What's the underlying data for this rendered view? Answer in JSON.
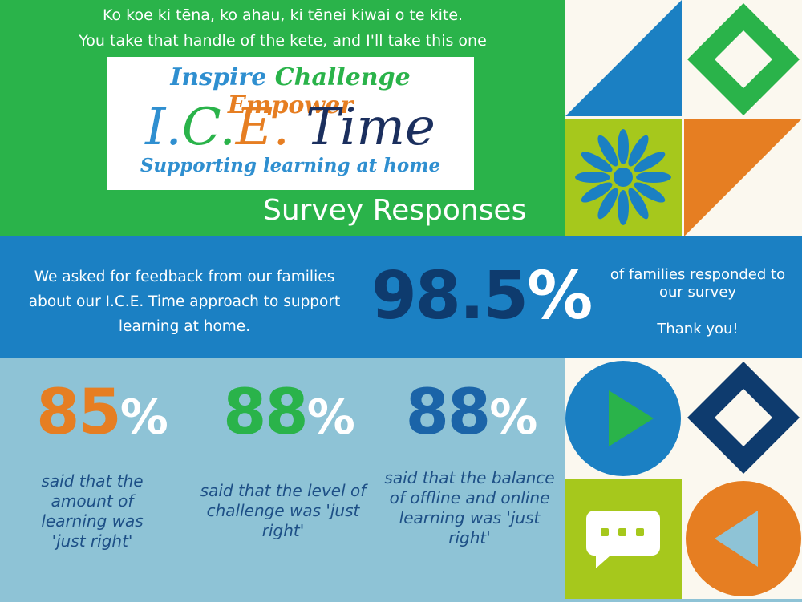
{
  "header": {
    "proverb_line1": "Ko koe ki tēna, ko ahau, ki tēnei kiwai o te kite.",
    "proverb_line2": "You take that handle of the kete, and I'll take this one"
  },
  "logo": {
    "inspire": "Inspire",
    "challenge": "Challenge",
    "empower": "Empower",
    "i": "I.",
    "c": "C.",
    "e": "E.",
    "time": "Time",
    "tagline": "Supporting learning at home"
  },
  "survey_title": "Survey Responses",
  "intro": {
    "text": "We asked for feedback from our families about our I.C.E. Time approach to support learning at home.",
    "percent": "98.5",
    "percent_sign": "%",
    "responded": "of families responded to our survey",
    "thanks": "Thank you!"
  },
  "stats": [
    {
      "value": "85",
      "sign": "%",
      "text": "said that the amount of learning was 'just right'",
      "color": "#e67e22"
    },
    {
      "value": "88",
      "sign": "%",
      "text": "said that the level of challenge was 'just right'",
      "color": "#2ab34a"
    },
    {
      "value": "88",
      "sign": "%",
      "text": "said that the balance of offline and online learning was 'just right'",
      "color": "#1b64a8"
    }
  ],
  "colors": {
    "green": "#2ab34a",
    "blue": "#1b80c3",
    "navy": "#0e3b6e",
    "orange": "#e67e22",
    "lime": "#a6c81c",
    "light_blue": "#8ec3d6",
    "cream": "#fbf8ef"
  },
  "icons": [
    "diamond-icon",
    "flower-icon",
    "play-icon",
    "chat-icon",
    "back-triangle-icon"
  ]
}
